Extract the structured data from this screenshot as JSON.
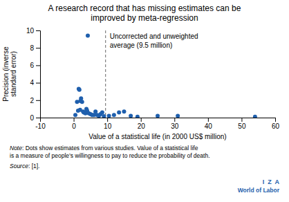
{
  "chart_data": {
    "type": "scatter",
    "title": "A research record that has missing estimates can be\nimproved by meta-regression",
    "xlabel": "Value of a statistical life (in 2000 US$ million)",
    "ylabel": "Precision (inverse\nstandard error)",
    "x": [
      0.5,
      1.0,
      1.3,
      1.5,
      1.7,
      1.9,
      2.0,
      2.2,
      2.5,
      2.8,
      3.0,
      3.2,
      3.5,
      3.8,
      4.0,
      4.2,
      4.5,
      5.0,
      5.5,
      6.0,
      6.5,
      7.0,
      7.5,
      8.0,
      8.5,
      9.0,
      10.5,
      12.0,
      13.5,
      15.0,
      17.0,
      19.0,
      25.0,
      31.0,
      54.0
    ],
    "values": [
      0.3,
      1.8,
      0.8,
      3.3,
      3.2,
      0.9,
      1.9,
      2.2,
      1.8,
      0.7,
      0.6,
      0.6,
      0.5,
      1.0,
      0.8,
      9.4,
      0.5,
      0.4,
      0.3,
      0.3,
      0.7,
      0.3,
      0.2,
      0.4,
      0.6,
      0.15,
      0.2,
      0.3,
      0.6,
      0.7,
      0.2,
      0.1,
      0.2,
      0.2,
      0.1
    ],
    "color": "#1F5FAD",
    "xlim": [
      -10,
      60
    ],
    "ylim": [
      0,
      10
    ],
    "xticks": [
      -10,
      0,
      10,
      20,
      30,
      40,
      50,
      60
    ],
    "yticks": [
      0,
      2,
      4,
      6,
      8,
      10
    ],
    "grid": false,
    "vline": {
      "value": 9.5,
      "label": "Uncorrected and unweighted\naverage (9.5 million)"
    },
    "notes": [
      {
        "italic": "Note",
        "text": ": Dots show estimates from various studies. Value of a statistical life\nis a measure of people’s willingness to pay to reduce the probability of death."
      },
      {
        "italic": "Source",
        "text": ": [1]."
      }
    ],
    "logo": [
      "I  Z  A",
      "World of Labor"
    ]
  }
}
